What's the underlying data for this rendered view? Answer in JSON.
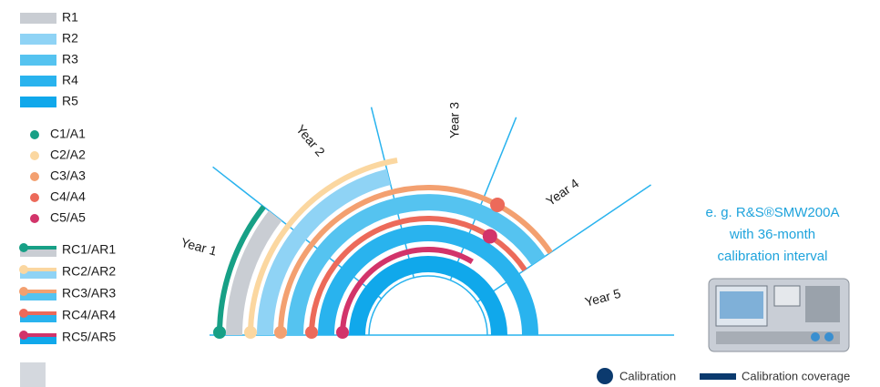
{
  "legend": {
    "r_items": [
      "R1",
      "R2",
      "R3",
      "R4",
      "R5"
    ],
    "c_items": [
      "C1/A1",
      "C2/A2",
      "C3/A3",
      "C4/A4",
      "C5/A5"
    ],
    "rc_items": [
      "RC1/AR1",
      "RC2/AR2",
      "RC3/AR3",
      "RC4/AR4",
      "RC5/AR5"
    ]
  },
  "years": [
    "Year 1",
    "Year 2",
    "Year 3",
    "Year 4",
    "Year 5"
  ],
  "note": {
    "lines": [
      "e. g. R&S®SMW200A",
      "with 36-month",
      "calibration interval"
    ]
  },
  "bottom_legend": {
    "calibration": "Calibration",
    "coverage": "Calibration coverage"
  }
}
